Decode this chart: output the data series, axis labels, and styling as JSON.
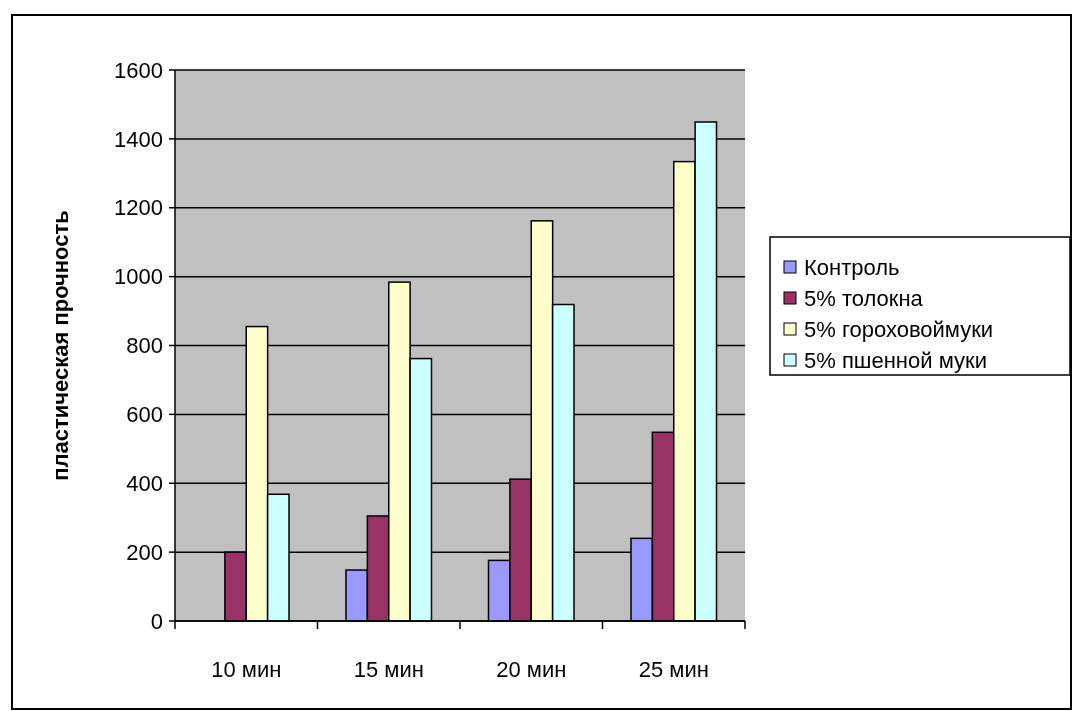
{
  "chart_data": {
    "type": "bar",
    "ylabel": "пластическая прочность",
    "categories": [
      "10 мин",
      "15 мин",
      "20 мин",
      "25 мин"
    ],
    "series": [
      {
        "name": "Контроль",
        "color": "#9999ff",
        "values": [
          null,
          148,
          176,
          240
        ]
      },
      {
        "name": "5% толокна",
        "color": "#993366",
        "values": [
          200,
          305,
          412,
          548
        ]
      },
      {
        "name": "5% гороховоймуки",
        "color": "#ffffcc",
        "values": [
          855,
          984,
          1162,
          1334
        ]
      },
      {
        "name": "5% пшенной муки",
        "color": "#ccffff",
        "values": [
          368,
          762,
          919,
          1449
        ]
      }
    ],
    "ylim": [
      0,
      1600
    ],
    "yticks": [
      0,
      200,
      400,
      600,
      800,
      1000,
      1200,
      1400,
      1600
    ],
    "grid": "y",
    "legend": "right"
  }
}
